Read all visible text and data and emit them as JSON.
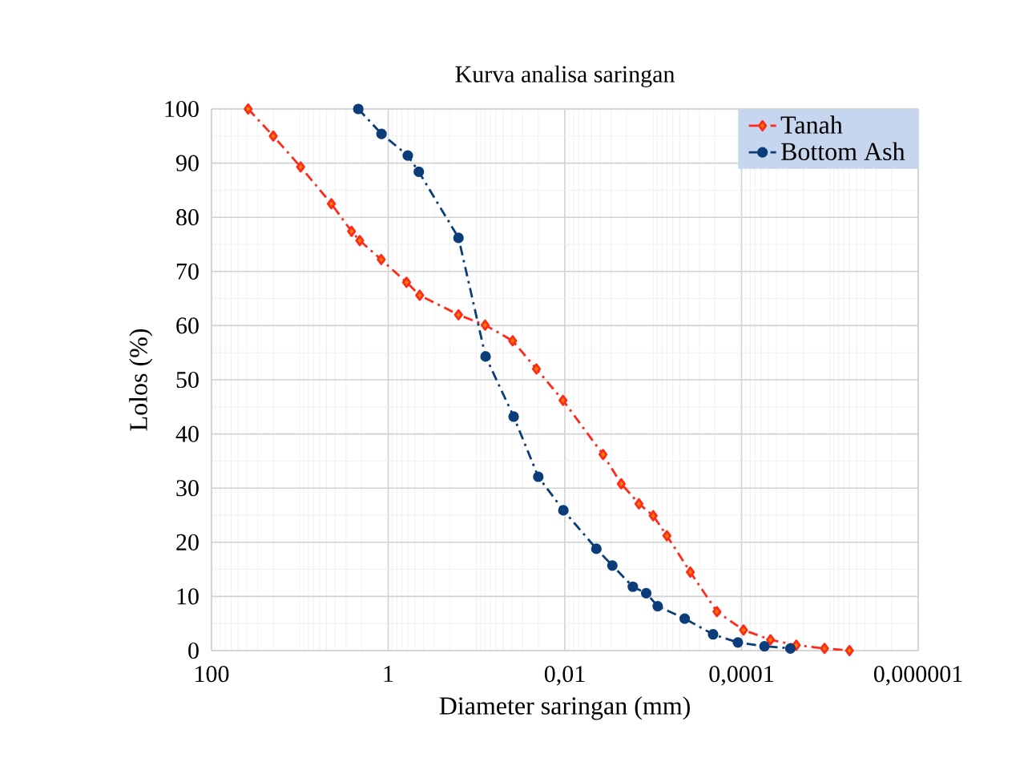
{
  "chart_data": {
    "type": "line",
    "title": "Kurva analisa saringan",
    "xlabel": "Diameter saringan (mm)",
    "ylabel": "Lolos (%)",
    "log": "x",
    "xlim": [
      100,
      1e-06
    ],
    "xticks": [
      {
        "value": 100,
        "label": "100"
      },
      {
        "value": 1,
        "label": "1"
      },
      {
        "value": 0.01,
        "label": "0,01"
      },
      {
        "value": 0.0001,
        "label": "0,0001"
      },
      {
        "value": 1e-06,
        "label": "0,000001"
      }
    ],
    "ylim": [
      0,
      100
    ],
    "yticks": [
      0,
      10,
      20,
      30,
      40,
      50,
      60,
      70,
      80,
      90,
      100
    ],
    "grid": true,
    "legend": "top right",
    "line_style": "dashed",
    "series": [
      {
        "name": "Tanah",
        "color": "#ff2a1a",
        "marker": "diamond",
        "x": [
          38.5,
          20,
          9.8,
          4.4,
          2.6,
          2.1,
          1.2,
          0.62,
          0.44,
          0.16,
          0.08,
          0.039,
          0.021,
          0.0105,
          0.0037,
          0.0023,
          0.00145,
          0.001,
          0.0007,
          0.00038,
          0.00019,
          9.5e-05,
          4.7e-05,
          2.4e-05,
          1.15e-05,
          6e-06
        ],
        "values": [
          100,
          95,
          89.3,
          82.5,
          77.4,
          75.7,
          72.2,
          68,
          65.6,
          62,
          60.1,
          57.2,
          52,
          46.2,
          36.2,
          30.8,
          27.1,
          24.9,
          21.2,
          14.5,
          7.2,
          3.8,
          2,
          1,
          0.4,
          0
        ]
      },
      {
        "name": "Bottom Ash",
        "color": "#0b3d7a",
        "marker": "circle",
        "x": [
          2.18,
          1.19,
          0.6,
          0.45,
          0.16,
          0.079,
          0.038,
          0.02,
          0.0104,
          0.0044,
          0.0029,
          0.0017,
          0.0012,
          0.00089,
          0.00044,
          0.00021,
          0.00011,
          5.5e-05,
          2.8e-05
        ],
        "values": [
          100,
          95.4,
          91.4,
          88.4,
          76.2,
          54.3,
          43.2,
          32.1,
          25.9,
          18.8,
          15.7,
          11.8,
          10.6,
          8.2,
          5.9,
          3,
          1.5,
          0.8,
          0.4
        ]
      }
    ]
  }
}
